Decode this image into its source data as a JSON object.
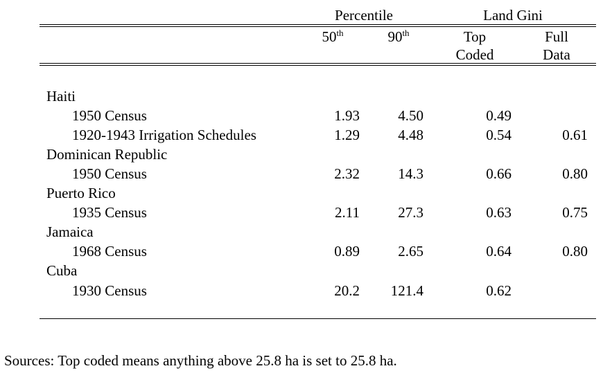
{
  "header": {
    "group_percentile": "Percentile",
    "group_gini": "Land Gini",
    "col_p50_base": "50",
    "col_p50_sup": "th",
    "col_p90_base": "90",
    "col_p90_sup": "th",
    "col_top_line1": "Top",
    "col_top_line2": "Coded",
    "col_full_line1": "Full",
    "col_full_line2": "Data"
  },
  "groups": [
    {
      "country": "Haiti",
      "rows": [
        {
          "label": "1950 Census",
          "p50": "1.93",
          "p90": "4.50",
          "gini_top": "0.49",
          "gini_full": ""
        },
        {
          "label": "1920-1943 Irrigation Schedules",
          "p50": "1.29",
          "p90": "4.48",
          "gini_top": "0.54",
          "gini_full": "0.61"
        }
      ]
    },
    {
      "country": "Dominican Republic",
      "rows": [
        {
          "label": "1950 Census",
          "p50": "2.32",
          "p90": "14.3",
          "gini_top": "0.66",
          "gini_full": "0.80"
        }
      ]
    },
    {
      "country": "Puerto Rico",
      "rows": [
        {
          "label": "1935 Census",
          "p50": "2.11",
          "p90": "27.3",
          "gini_top": "0.63",
          "gini_full": "0.75"
        }
      ]
    },
    {
      "country": "Jamaica",
      "rows": [
        {
          "label": "1968 Census",
          "p50": "0.89",
          "p90": "2.65",
          "gini_top": "0.64",
          "gini_full": "0.80"
        }
      ]
    },
    {
      "country": "Cuba",
      "rows": [
        {
          "label": "1930 Census",
          "p50": "20.2",
          "p90": "121.4",
          "gini_top": "0.62",
          "gini_full": ""
        }
      ]
    }
  ],
  "footnote": "Sources: Top coded means anything above 25.8 ha is set to 25.8 ha."
}
